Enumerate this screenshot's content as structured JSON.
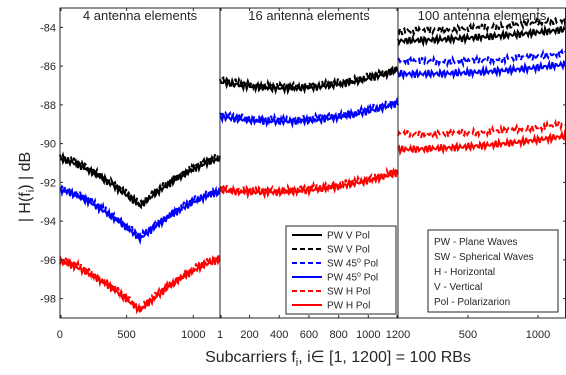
{
  "figure": {
    "ylabel": "| H(f",
    "ylabel_sub": "i",
    "ylabel_tail": ") | dB",
    "xlabel_pre": "Subcarriers f",
    "xlabel_sub": "i",
    "xlabel_post": ", i∈ [1, 1200] = 100 RBs"
  },
  "legend_series": {
    "items": [
      {
        "key": "pw_v",
        "label": "PW V Pol",
        "sup": ""
      },
      {
        "key": "sw_v",
        "label": "SW V Pol",
        "sup": ""
      },
      {
        "key": "sw_45",
        "label": "SW 45",
        "sup": "o",
        "tail": " Pol"
      },
      {
        "key": "pw_45",
        "label": "PW 45",
        "sup": "o",
        "tail": " Pol"
      },
      {
        "key": "sw_h",
        "label": "SW H Pol",
        "sup": ""
      },
      {
        "key": "pw_h",
        "label": "PW H Pol",
        "sup": ""
      }
    ]
  },
  "legend_abbrev": {
    "lines": [
      "PW - Plane Waves",
      "SW - Spherical Waves",
      "H - Horizontal",
      "V - Vertical",
      "Pol - Polarizarion"
    ]
  },
  "colors": {
    "pw_v": "#000000",
    "sw_v": "#000000",
    "sw_45": "#0000ff",
    "pw_45": "#0000ff",
    "sw_h": "#ff0000",
    "pw_h": "#ff0000"
  },
  "chart_data": [
    {
      "type": "line",
      "title": "4 antenna elements",
      "xlim": [
        1,
        1200
      ],
      "ylim": [
        -99,
        -83
      ],
      "xticks": [
        0,
        500,
        1000
      ],
      "yticks": [
        -98,
        -96,
        -94,
        -92,
        -90,
        -88,
        -86,
        -84
      ],
      "ytick_labels": [
        "-98",
        "-96",
        "-94",
        "-92",
        "-90",
        "-88",
        "-86",
        "-84"
      ],
      "shape": "v",
      "series": [
        {
          "key": "pw_v",
          "style": "solid",
          "y_start": -90.8,
          "y_mid": -93.2,
          "y_end": -90.8
        },
        {
          "key": "sw_v",
          "style": "dashed",
          "y_start": -90.7,
          "y_mid": -93.1,
          "y_end": -90.7
        },
        {
          "key": "sw_45",
          "style": "dashed",
          "y_start": -92.3,
          "y_mid": -94.8,
          "y_end": -92.4
        },
        {
          "key": "pw_45",
          "style": "solid",
          "y_start": -92.4,
          "y_mid": -94.9,
          "y_end": -92.5
        },
        {
          "key": "sw_h",
          "style": "dashed",
          "y_start": -96.0,
          "y_mid": -98.5,
          "y_end": -95.9
        },
        {
          "key": "pw_h",
          "style": "solid",
          "y_start": -96.1,
          "y_mid": -98.6,
          "y_end": -96.0
        }
      ]
    },
    {
      "type": "line",
      "title": "16 antenna elements",
      "xlim": [
        1,
        1200
      ],
      "ylim": [
        -99,
        -83
      ],
      "xticks": [
        1,
        200,
        400,
        600,
        800,
        1000,
        1200
      ],
      "shape": "tilt",
      "series": [
        {
          "key": "pw_v",
          "style": "solid",
          "y_start": -86.8,
          "y_mid": -87.1,
          "y_end": -86.2
        },
        {
          "key": "sw_v",
          "style": "dashed",
          "y_start": -86.7,
          "y_mid": -87.0,
          "y_end": -86.1
        },
        {
          "key": "sw_45",
          "style": "dashed",
          "y_start": -88.5,
          "y_mid": -88.7,
          "y_end": -87.8
        },
        {
          "key": "pw_45",
          "style": "solid",
          "y_start": -88.6,
          "y_mid": -88.8,
          "y_end": -87.9
        },
        {
          "key": "sw_h",
          "style": "dashed",
          "y_start": -92.3,
          "y_mid": -92.3,
          "y_end": -91.4
        },
        {
          "key": "pw_h",
          "style": "solid",
          "y_start": -92.4,
          "y_mid": -92.4,
          "y_end": -91.5
        }
      ]
    },
    {
      "type": "line",
      "title": "100 antenna elements",
      "xlim": [
        1,
        1200
      ],
      "ylim": [
        -99,
        -83
      ],
      "xticks": [
        500,
        1000
      ],
      "shape": "rise",
      "series": [
        {
          "key": "pw_v",
          "style": "solid",
          "y_start": -84.7,
          "y_mid": -84.5,
          "y_end": -84.1
        },
        {
          "key": "sw_v",
          "style": "dashed",
          "y_start": -84.2,
          "y_mid": -84.0,
          "y_end": -83.6
        },
        {
          "key": "sw_45",
          "style": "dashed",
          "y_start": -85.7,
          "y_mid": -85.7,
          "y_end": -85.3
        },
        {
          "key": "pw_45",
          "style": "solid",
          "y_start": -86.4,
          "y_mid": -86.3,
          "y_end": -85.9
        },
        {
          "key": "sw_h",
          "style": "dashed",
          "y_start": -89.5,
          "y_mid": -89.4,
          "y_end": -89.0
        },
        {
          "key": "pw_h",
          "style": "solid",
          "y_start": -90.3,
          "y_mid": -90.1,
          "y_end": -89.6
        }
      ]
    }
  ]
}
